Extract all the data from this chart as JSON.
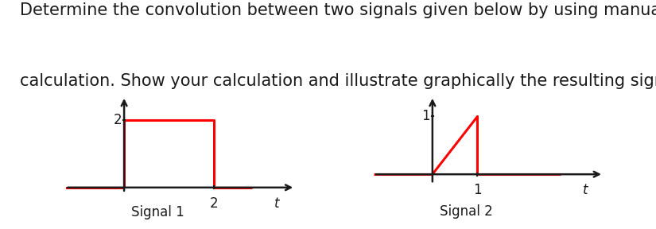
{
  "signal1": {
    "label": "Signal 1",
    "tick_x_val": 2,
    "tick_y_val": 2,
    "tick_x_label": "2",
    "tick_y_label": "2",
    "t_label": "t",
    "xlim": [
      -1.3,
      3.8
    ],
    "ylim": [
      -0.55,
      2.7
    ]
  },
  "signal2": {
    "label": "Signal 2",
    "tick_x_val": 1,
    "tick_y_val": 1,
    "tick_x_label": "1",
    "tick_y_label": "1",
    "t_label": "t",
    "xlim": [
      -1.3,
      3.8
    ],
    "ylim": [
      -0.55,
      1.35
    ]
  },
  "signal_color": "#ff0000",
  "axis_color": "#1a1a1a",
  "text_color": "#1a1a1a",
  "label_fontsize": 12,
  "tick_fontsize": 12,
  "title_line1": "Determine the convolution between two signals given below by using manual",
  "title_line2": "calculation. Show your calculation and illustrate graphically the resulting signal",
  "title_fontsize": 15,
  "title_fontfamily": "DejaVu Sans"
}
